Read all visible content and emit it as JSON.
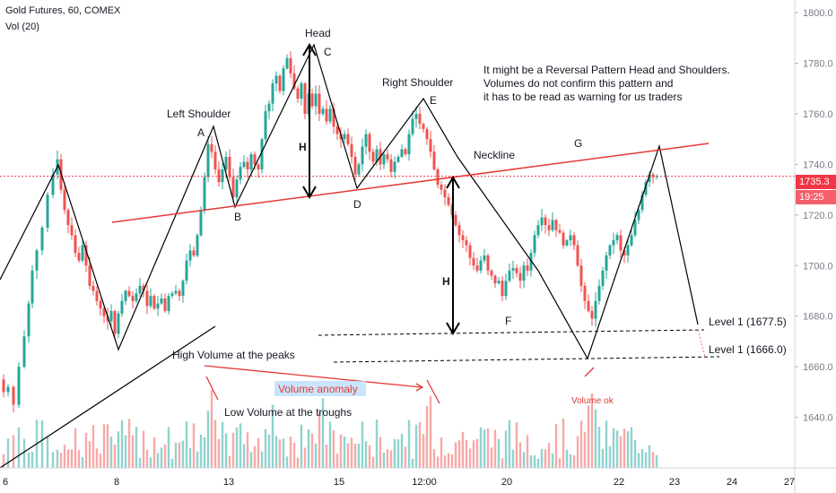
{
  "header": {
    "symbol_title": "Gold Futures, 60, COMEX",
    "indicator": "Vol (20)"
  },
  "price_box": {
    "price": "1735.3",
    "countdown": "19:25"
  },
  "colors": {
    "up": "#26a69a",
    "down": "#ef5350",
    "up_vol": "#8fd3cd",
    "down_vol": "#f7a9a7",
    "pattern": "#000000",
    "neckline": "#e53935",
    "volume_arrow": "#e53935",
    "price_line": "#f23645",
    "axis_text": "#787b86",
    "grid": "#e0e3eb"
  },
  "chart_data": {
    "type": "candlestick",
    "y_axis": {
      "min": 1620,
      "max": 1805,
      "ticks": [
        1640,
        1660,
        1680,
        1700,
        1720,
        1740,
        1760,
        1780,
        1800
      ]
    },
    "x_axis": {
      "ticks": [
        "6",
        "8",
        "13",
        "15",
        "12:00",
        "20",
        "22",
        "23",
        "24",
        "27"
      ]
    },
    "current_price": 1735.3,
    "ohlc_path": [
      [
        0,
        1655
      ],
      [
        4,
        1650
      ],
      [
        10,
        1652
      ],
      [
        16,
        1645
      ],
      [
        22,
        1660
      ],
      [
        28,
        1672
      ],
      [
        32,
        1685
      ],
      [
        36,
        1698
      ],
      [
        42,
        1706
      ],
      [
        48,
        1715
      ],
      [
        54,
        1728
      ],
      [
        60,
        1736
      ],
      [
        64,
        1742
      ],
      [
        68,
        1730
      ],
      [
        72,
        1722
      ],
      [
        76,
        1716
      ],
      [
        80,
        1712
      ],
      [
        84,
        1705
      ],
      [
        88,
        1702
      ],
      [
        92,
        1708
      ],
      [
        96,
        1700
      ],
      [
        100,
        1692
      ],
      [
        104,
        1690
      ],
      [
        108,
        1686
      ],
      [
        112,
        1683
      ],
      [
        116,
        1680
      ],
      [
        120,
        1678
      ],
      [
        124,
        1682
      ],
      [
        128,
        1673
      ],
      [
        132,
        1681
      ],
      [
        136,
        1686
      ],
      [
        140,
        1690
      ],
      [
        144,
        1688
      ],
      [
        148,
        1686
      ],
      [
        152,
        1689
      ],
      [
        156,
        1692
      ],
      [
        160,
        1690
      ],
      [
        164,
        1684
      ],
      [
        168,
        1688
      ],
      [
        172,
        1683
      ],
      [
        176,
        1685
      ],
      [
        180,
        1687
      ],
      [
        184,
        1682
      ],
      [
        188,
        1688
      ],
      [
        192,
        1689
      ],
      [
        196,
        1690
      ],
      [
        200,
        1688
      ],
      [
        204,
        1694
      ],
      [
        208,
        1702
      ],
      [
        212,
        1706
      ],
      [
        216,
        1704
      ],
      [
        220,
        1712
      ],
      [
        224,
        1722
      ],
      [
        228,
        1735
      ],
      [
        232,
        1748
      ],
      [
        236,
        1745
      ],
      [
        240,
        1738
      ],
      [
        244,
        1733
      ],
      [
        248,
        1738
      ],
      [
        252,
        1743
      ],
      [
        256,
        1735
      ],
      [
        260,
        1727
      ],
      [
        264,
        1734
      ],
      [
        268,
        1739
      ],
      [
        272,
        1741
      ],
      [
        276,
        1738
      ],
      [
        280,
        1744
      ],
      [
        284,
        1740
      ],
      [
        288,
        1738
      ],
      [
        292,
        1750
      ],
      [
        296,
        1761
      ],
      [
        300,
        1764
      ],
      [
        304,
        1772
      ],
      [
        308,
        1775
      ],
      [
        312,
        1769
      ],
      [
        316,
        1778
      ],
      [
        320,
        1782
      ],
      [
        324,
        1776
      ],
      [
        328,
        1770
      ],
      [
        332,
        1766
      ],
      [
        336,
        1772
      ],
      [
        340,
        1760
      ],
      [
        344,
        1768
      ],
      [
        348,
        1763
      ],
      [
        352,
        1768
      ],
      [
        356,
        1760
      ],
      [
        360,
        1762
      ],
      [
        364,
        1757
      ],
      [
        368,
        1762
      ],
      [
        372,
        1755
      ],
      [
        376,
        1752
      ],
      [
        380,
        1750
      ],
      [
        384,
        1752
      ],
      [
        388,
        1748
      ],
      [
        392,
        1743
      ],
      [
        396,
        1736
      ],
      [
        400,
        1740
      ],
      [
        404,
        1747
      ],
      [
        408,
        1752
      ],
      [
        412,
        1745
      ],
      [
        416,
        1741
      ],
      [
        420,
        1746
      ],
      [
        424,
        1740
      ],
      [
        428,
        1744
      ],
      [
        432,
        1742
      ],
      [
        436,
        1737
      ],
      [
        440,
        1741
      ],
      [
        444,
        1743
      ],
      [
        448,
        1746
      ],
      [
        452,
        1744
      ],
      [
        456,
        1752
      ],
      [
        460,
        1758
      ],
      [
        464,
        1760
      ],
      [
        468,
        1756
      ],
      [
        472,
        1754
      ],
      [
        476,
        1750
      ],
      [
        480,
        1745
      ],
      [
        484,
        1738
      ],
      [
        488,
        1732
      ],
      [
        492,
        1730
      ],
      [
        496,
        1727
      ],
      [
        500,
        1724
      ],
      [
        504,
        1720
      ],
      [
        508,
        1716
      ],
      [
        512,
        1712
      ],
      [
        516,
        1710
      ],
      [
        520,
        1708
      ],
      [
        524,
        1703
      ],
      [
        528,
        1700
      ],
      [
        532,
        1698
      ],
      [
        536,
        1702
      ],
      [
        540,
        1704
      ],
      [
        544,
        1698
      ],
      [
        548,
        1696
      ],
      [
        552,
        1693
      ],
      [
        556,
        1694
      ],
      [
        560,
        1688
      ],
      [
        564,
        1694
      ],
      [
        568,
        1698
      ],
      [
        572,
        1699
      ],
      [
        576,
        1697
      ],
      [
        580,
        1694
      ],
      [
        584,
        1700
      ],
      [
        588,
        1698
      ],
      [
        592,
        1705
      ],
      [
        596,
        1712
      ],
      [
        600,
        1716
      ],
      [
        604,
        1719
      ],
      [
        608,
        1716
      ],
      [
        612,
        1714
      ],
      [
        616,
        1718
      ],
      [
        620,
        1714
      ],
      [
        624,
        1713
      ],
      [
        628,
        1708
      ],
      [
        632,
        1710
      ],
      [
        636,
        1712
      ],
      [
        640,
        1708
      ],
      [
        644,
        1700
      ],
      [
        648,
        1692
      ],
      [
        652,
        1686
      ],
      [
        656,
        1682
      ],
      [
        660,
        1679
      ],
      [
        664,
        1686
      ],
      [
        668,
        1692
      ],
      [
        672,
        1698
      ],
      [
        676,
        1704
      ],
      [
        680,
        1708
      ],
      [
        684,
        1710
      ],
      [
        688,
        1712
      ],
      [
        692,
        1706
      ],
      [
        696,
        1704
      ],
      [
        700,
        1708
      ],
      [
        704,
        1712
      ],
      [
        708,
        1718
      ],
      [
        712,
        1722
      ],
      [
        716,
        1728
      ],
      [
        720,
        1733
      ],
      [
        724,
        1736
      ],
      [
        728,
        1735
      ],
      [
        732,
        1735.3
      ]
    ]
  },
  "annotations": {
    "head": "Head",
    "left_shoulder": "Left Shoulder",
    "right_shoulder": "Right Shoulder",
    "neckline": "Neckline",
    "A": "A",
    "B": "B",
    "C": "C",
    "D": "D",
    "E": "E",
    "F": "F",
    "G": "G",
    "H": "H",
    "comment": [
      "It might be a Reversal Pattern Head and Shoulders.",
      "Volumes do not confirm this pattern and",
      "it has to be read as warning for us traders"
    ],
    "high_volume": "High Volume at the peaks",
    "low_volume": "Low Volume at the troughs",
    "volume_anomaly": "Volume anomaly",
    "volume_ok": "Volume ok",
    "level1a": "Level 1 (1677.5)",
    "level1b": "Level 1 (1666.0)"
  }
}
